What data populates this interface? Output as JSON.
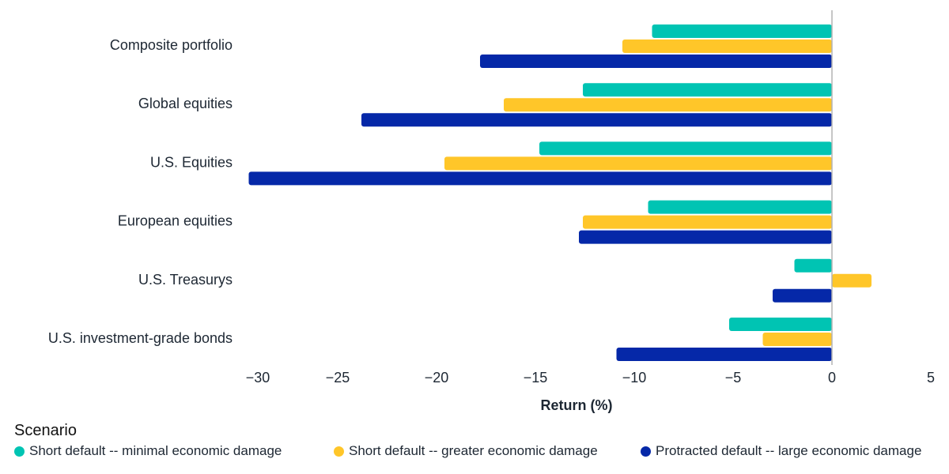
{
  "chart_data": {
    "type": "bar",
    "orientation": "horizontal",
    "title": "",
    "xlabel": "Return (%)",
    "ylabel": "",
    "xlim": [
      -30,
      5
    ],
    "xticks": [
      -30,
      -25,
      -20,
      -15,
      -10,
      -5,
      0,
      5
    ],
    "xtick_labels": [
      "−30",
      "−25",
      "−20",
      "−15",
      "−10",
      "−5",
      "0",
      "5"
    ],
    "grid": false,
    "categories": [
      "Composite portfolio",
      "Global equities",
      "U.S. Equities",
      "European equities",
      "U.S. Treasurys",
      "U.S. investment-grade bonds"
    ],
    "series": [
      {
        "name": "Short default -- minimal economic damage",
        "color": "#00c4b3",
        "values": [
          -9.1,
          -12.6,
          -14.8,
          -9.3,
          -1.9,
          -5.2
        ]
      },
      {
        "name": "Short default -- greater economic damage",
        "color": "#ffc629",
        "values": [
          -10.6,
          -16.6,
          -19.6,
          -12.6,
          2.0,
          -3.5
        ]
      },
      {
        "name": "Protracted default -- large economic damage",
        "color": "#0528a8",
        "values": [
          -17.8,
          -23.8,
          -29.5,
          -12.8,
          -3.0,
          -10.9
        ]
      }
    ],
    "legend_title": "Scenario",
    "legend_position": "bottom-left"
  }
}
